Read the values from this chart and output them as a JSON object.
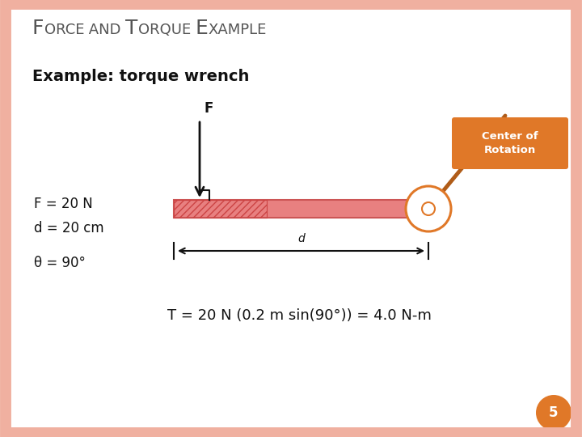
{
  "subtitle": "Example: torque wrench",
  "label_F": "F = 20 N",
  "label_d": "d = 20 cm",
  "label_theta": "θ = 90°",
  "formula": "T = 20 N (0.2 m sin(90°)) = 4.0 N-m",
  "center_label": "Center of\nRotation",
  "page_num": "5",
  "bg_color": "#ffffff",
  "border_color": "#f0b0a0",
  "wrench_fill": "#e88080",
  "wrench_edge": "#cc5555",
  "hatch_color": "#cc4444",
  "orange_box": "#e07828",
  "orange_circle_edge": "#e07828",
  "handle_color": "#b05c18",
  "arrow_color": "#111111",
  "text_color": "#555555",
  "title_color": "#555555",
  "formula_color": "#111111"
}
